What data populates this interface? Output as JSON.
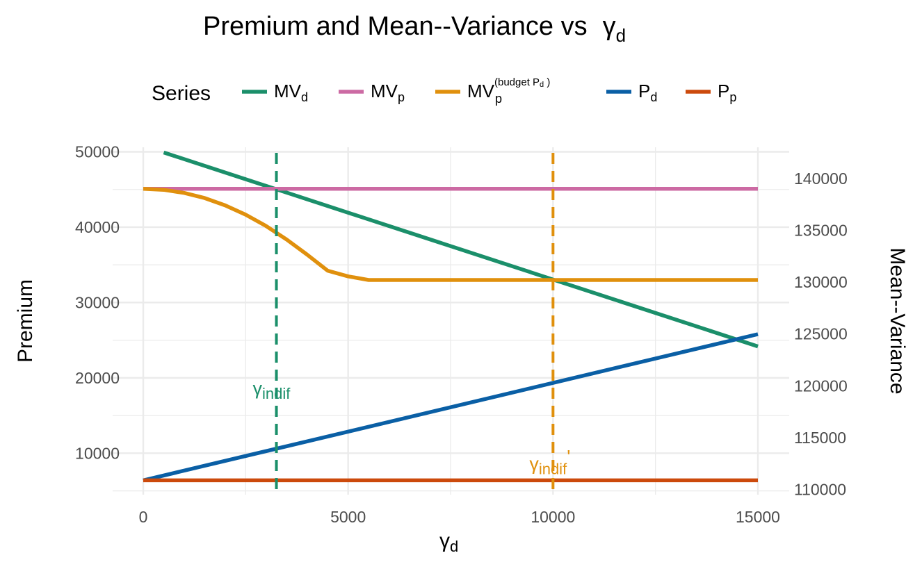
{
  "chart_data": {
    "type": "line",
    "title": "Premium and Mean--Variance vs",
    "title_symbol": "γ",
    "title_symbol_sub": "d",
    "xlabel_symbol": "γ",
    "xlabel_sub": "d",
    "ylabel_left": "Premium",
    "ylabel_right": "Mean--Variance",
    "legend_title": "Series",
    "xlim": [
      0,
      15000
    ],
    "ylim_left": [
      4500,
      50600
    ],
    "ylim_right": [
      109500,
      143000
    ],
    "x_ticks": [
      0,
      5000,
      10000,
      15000
    ],
    "x_tick_labels": [
      "0",
      "5000",
      "10000",
      "15000"
    ],
    "y_left_ticks": [
      10000,
      20000,
      30000,
      40000,
      50000
    ],
    "y_left_tick_labels": [
      "10000",
      "20000",
      "30000",
      "40000",
      "50000"
    ],
    "y_right_ticks": [
      110000,
      115000,
      120000,
      125000,
      130000,
      135000,
      140000
    ],
    "y_right_tick_labels": [
      "110000",
      "115000",
      "120000",
      "125000",
      "130000",
      "135000",
      "140000"
    ],
    "series": [
      {
        "key": "MV_d",
        "name": "MV",
        "sub": "d",
        "sup": "",
        "color": "#1b8f6a",
        "axis": "right",
        "x": [
          500,
          15000
        ],
        "y": [
          142500,
          123800
        ]
      },
      {
        "key": "MV_p",
        "name": "MV",
        "sub": "p",
        "sup": "",
        "color": "#cc6aa3",
        "axis": "right",
        "x": [
          0,
          15000
        ],
        "y": [
          139000,
          139000
        ]
      },
      {
        "key": "MV_p_budget",
        "name": "MV",
        "sub": "p",
        "sup": "(budget  P",
        "sup_sub": "d",
        "sup_close": " )",
        "color": "#e0900d",
        "axis": "right",
        "x": [
          0,
          500,
          1000,
          1500,
          2000,
          2500,
          3000,
          3500,
          4000,
          4500,
          5000,
          5500,
          6000,
          10000,
          15000
        ],
        "y": [
          139000,
          138900,
          138600,
          138100,
          137400,
          136500,
          135400,
          134100,
          132650,
          131100,
          130550,
          130200,
          130200,
          130200,
          130200
        ]
      },
      {
        "key": "P_d",
        "name": "P",
        "sub": "d",
        "sup": "",
        "color": "#0a5fa5",
        "axis": "left",
        "x": [
          0,
          15000
        ],
        "y": [
          6400,
          25800
        ]
      },
      {
        "key": "P_p",
        "name": "P",
        "sub": "p",
        "sup": "",
        "color": "#cc4a0c",
        "axis": "left",
        "x": [
          0,
          15000
        ],
        "y": [
          6400,
          6400
        ]
      }
    ],
    "vlines": [
      {
        "x": 3250,
        "color": "#1b8f6a",
        "label": "γ",
        "label_sub": "indif",
        "label_prime": "",
        "label_y_left": 18500
      },
      {
        "x": 10000,
        "color": "#e0900d",
        "label": "γ",
        "label_sub": "indif",
        "label_prime": "'",
        "label_y_left": 8500
      }
    ]
  }
}
